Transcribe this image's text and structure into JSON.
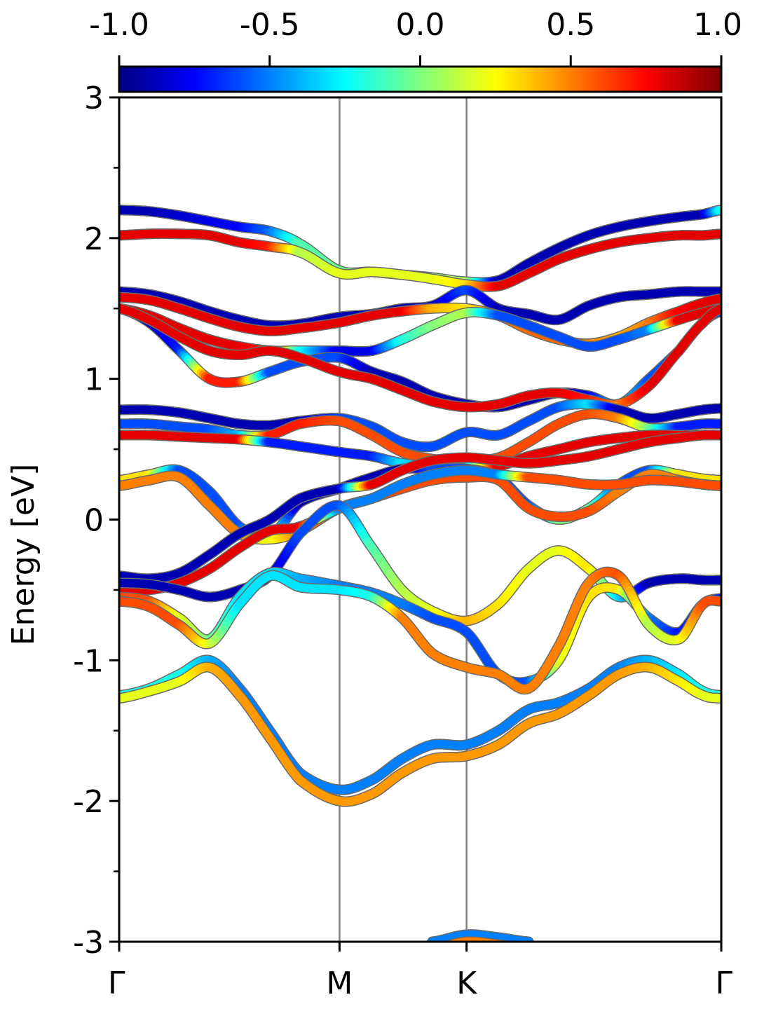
{
  "chart_data": {
    "type": "line",
    "subtype": "band-structure (fat bands colored by projection)",
    "title": "",
    "xlabel": "",
    "ylabel": "Energy [eV]",
    "ylim": [
      -3,
      3
    ],
    "y_major_ticks": [
      -3,
      -2,
      -1,
      0,
      1,
      2,
      3
    ],
    "y_major_tick_labels": [
      "-3",
      "-2",
      "-1",
      "0",
      "1",
      "2",
      "3"
    ],
    "y_minor_ticks": [
      -2.5,
      -1.5,
      -0.5,
      0.5,
      1.5,
      2.5
    ],
    "k_path": {
      "labels": [
        "Γ",
        "M",
        "K",
        "Γ"
      ],
      "positions": [
        0,
        0.366,
        0.577,
        1
      ],
      "vertical_lines_at": [
        "M",
        "K"
      ]
    },
    "colorbar": {
      "colormap": "jet",
      "range": [
        -1.0,
        1.0
      ],
      "ticks": [
        -1.0,
        -0.5,
        0.0,
        0.5,
        1.0
      ],
      "tick_labels": [
        "-1.0",
        "-0.5",
        "0.0",
        "0.5",
        "1.0"
      ],
      "placement": "top",
      "orientation": "horizontal"
    },
    "x": [
      0,
      0.05,
      0.1,
      0.15,
      0.2,
      0.25,
      0.3,
      0.366,
      0.42,
      0.47,
      0.52,
      0.577,
      0.63,
      0.68,
      0.73,
      0.78,
      0.83,
      0.88,
      0.93,
      0.97,
      1.0
    ],
    "bands": [
      {
        "e": [
          2.2,
          2.19,
          2.16,
          2.12,
          2.08,
          2.05,
          1.96,
          1.77,
          1.76,
          1.74,
          1.72,
          1.69,
          1.7,
          1.82,
          1.93,
          2.02,
          2.08,
          2.12,
          2.15,
          2.17,
          2.2
        ],
        "w": [
          -0.9,
          -0.9,
          -0.85,
          -0.8,
          -0.75,
          -0.55,
          -0.1,
          -0.05,
          0.0,
          0.05,
          0.05,
          0.1,
          -0.9,
          -0.9,
          -0.9,
          -0.9,
          -0.9,
          -0.9,
          -0.9,
          -0.9,
          -0.2
        ]
      },
      {
        "e": [
          2.02,
          2.03,
          2.03,
          2.02,
          1.97,
          1.94,
          1.9,
          1.75,
          1.76,
          1.74,
          1.71,
          1.67,
          1.66,
          1.75,
          1.85,
          1.92,
          1.97,
          2.0,
          2.02,
          2.02,
          2.03
        ],
        "w": [
          0.8,
          0.8,
          0.8,
          0.8,
          0.8,
          0.7,
          0.1,
          0.2,
          0.2,
          0.2,
          0.2,
          0.3,
          0.8,
          0.8,
          0.8,
          0.8,
          0.8,
          0.8,
          0.8,
          0.8,
          0.8
        ]
      },
      {
        "e": [
          1.62,
          1.6,
          1.55,
          1.48,
          1.42,
          1.38,
          1.39,
          1.44,
          1.46,
          1.5,
          1.52,
          1.63,
          1.5,
          1.46,
          1.42,
          1.52,
          1.58,
          1.6,
          1.62,
          1.62,
          1.62
        ],
        "w": [
          -0.9,
          -0.9,
          -0.9,
          -0.9,
          -0.9,
          -0.9,
          -0.9,
          -0.9,
          -0.9,
          -0.9,
          -0.9,
          -0.6,
          -0.9,
          -0.9,
          -0.9,
          -0.9,
          -0.9,
          -0.9,
          -0.9,
          -0.9,
          -0.9
        ]
      },
      {
        "e": [
          1.58,
          1.56,
          1.5,
          1.43,
          1.37,
          1.34,
          1.36,
          1.4,
          1.45,
          1.48,
          1.5,
          1.5,
          1.45,
          1.35,
          1.28,
          1.25,
          1.3,
          1.4,
          1.48,
          1.54,
          1.57
        ],
        "w": [
          0.8,
          0.8,
          0.8,
          0.8,
          0.8,
          0.8,
          0.8,
          0.8,
          0.8,
          0.8,
          0.4,
          0.3,
          0.5,
          0.55,
          0.55,
          0.5,
          0.4,
          0.5,
          0.75,
          0.8,
          0.8
        ]
      },
      {
        "e": [
          1.5,
          1.45,
          1.36,
          1.28,
          1.23,
          1.2,
          1.2,
          1.2,
          1.2,
          1.28,
          1.38,
          1.47,
          1.45,
          1.38,
          1.3,
          1.23,
          1.28,
          1.35,
          1.42,
          1.47,
          1.5
        ],
        "w": [
          0.8,
          0.8,
          0.8,
          0.8,
          0.8,
          0.7,
          -0.2,
          -0.8,
          -0.8,
          -0.2,
          0.0,
          0.1,
          -0.6,
          -0.6,
          -0.6,
          -0.6,
          -0.6,
          -0.5,
          0.8,
          0.8,
          0.8
        ]
      },
      {
        "e": [
          1.5,
          1.4,
          1.2,
          1.0,
          0.98,
          1.05,
          1.12,
          1.15,
          1.05,
          0.98,
          0.88,
          0.82,
          0.8,
          0.85,
          0.9,
          0.88,
          0.82,
          1.0,
          1.2,
          1.4,
          1.48
        ],
        "w": [
          -0.9,
          -0.9,
          -0.7,
          0.7,
          0.7,
          -0.6,
          -0.6,
          -0.6,
          -0.9,
          -0.9,
          -0.9,
          -0.9,
          -0.9,
          -0.9,
          -0.9,
          -0.8,
          -0.3,
          -0.6,
          -0.6,
          -0.6,
          -0.6
        ]
      },
      {
        "e": [
          1.5,
          1.42,
          1.3,
          1.2,
          1.17,
          1.2,
          1.15,
          1.05,
          1.0,
          0.92,
          0.84,
          0.8,
          0.82,
          0.88,
          0.9,
          0.85,
          0.82,
          0.95,
          1.2,
          1.4,
          1.5
        ],
        "w": [
          0.8,
          0.8,
          0.8,
          0.8,
          0.8,
          0.8,
          0.8,
          0.8,
          0.8,
          0.8,
          0.8,
          0.8,
          0.8,
          0.8,
          0.8,
          0.7,
          0.5,
          0.8,
          0.8,
          0.8,
          0.8
        ]
      },
      {
        "e": [
          0.78,
          0.78,
          0.76,
          0.72,
          0.68,
          0.67,
          0.7,
          0.72,
          0.66,
          0.55,
          0.52,
          0.62,
          0.6,
          0.7,
          0.8,
          0.82,
          0.78,
          0.72,
          0.75,
          0.78,
          0.79
        ],
        "w": [
          -0.9,
          -0.9,
          -0.9,
          -0.9,
          -0.9,
          -0.9,
          -0.9,
          -0.6,
          -0.6,
          -0.6,
          -0.6,
          -0.6,
          -0.6,
          -0.6,
          -0.6,
          -0.3,
          -0.9,
          -0.9,
          -0.9,
          -0.9,
          -0.9
        ]
      },
      {
        "e": [
          0.68,
          0.68,
          0.66,
          0.64,
          0.6,
          0.6,
          0.68,
          0.7,
          0.6,
          0.48,
          0.43,
          0.42,
          0.44,
          0.55,
          0.68,
          0.75,
          0.72,
          0.65,
          0.66,
          0.68,
          0.68
        ],
        "w": [
          -0.6,
          -0.6,
          -0.6,
          -0.6,
          -0.4,
          0.7,
          0.7,
          0.6,
          0.6,
          0.6,
          0.6,
          0.6,
          0.6,
          0.6,
          0.6,
          0.6,
          0.5,
          0.0,
          -0.7,
          -0.7,
          -0.7
        ]
      },
      {
        "e": [
          0.6,
          0.6,
          0.59,
          0.58,
          0.57,
          0.55,
          0.52,
          0.48,
          0.45,
          0.4,
          0.38,
          0.38,
          0.38,
          0.45,
          0.5,
          0.55,
          0.58,
          0.6,
          0.6,
          0.6,
          0.6
        ],
        "w": [
          0.8,
          0.8,
          0.8,
          0.8,
          0.8,
          -0.7,
          -0.7,
          -0.7,
          -0.7,
          -0.3,
          -0.4,
          -0.4,
          0.8,
          0.8,
          0.8,
          0.8,
          0.8,
          0.8,
          0.8,
          0.8,
          0.8
        ]
      },
      {
        "e": [
          0.28,
          0.32,
          0.35,
          0.2,
          -0.05,
          -0.12,
          0.12,
          0.22,
          0.3,
          0.36,
          0.36,
          0.36,
          0.3,
          0.1,
          0.0,
          0.08,
          0.25,
          0.35,
          0.32,
          0.29,
          0.28
        ],
        "w": [
          0.3,
          0.3,
          -0.6,
          -0.6,
          -0.6,
          0.0,
          -0.9,
          -0.9,
          -0.9,
          -0.9,
          -0.6,
          -0.6,
          -0.6,
          -0.6,
          0.0,
          0.0,
          -0.6,
          -0.6,
          0.3,
          0.3,
          0.3
        ]
      },
      {
        "e": [
          0.24,
          0.28,
          0.3,
          0.1,
          -0.1,
          -0.14,
          -0.08,
          0.08,
          0.15,
          0.22,
          0.28,
          0.3,
          0.28,
          0.08,
          0.02,
          0.06,
          0.2,
          0.32,
          0.28,
          0.25,
          0.24
        ],
        "w": [
          0.5,
          0.5,
          0.5,
          0.5,
          0.5,
          0.2,
          0.5,
          0.6,
          0.6,
          0.6,
          0.6,
          0.6,
          0.6,
          0.6,
          0.6,
          0.6,
          0.5,
          0.5,
          0.5,
          0.5,
          0.5
        ]
      },
      {
        "e": [
          -0.4,
          -0.42,
          -0.38,
          -0.25,
          -0.1,
          0.0,
          0.15,
          0.22,
          0.25,
          0.35,
          0.42,
          0.44,
          0.42,
          0.4,
          0.42,
          0.45,
          0.5,
          0.55,
          0.58,
          0.6,
          0.6
        ],
        "w": [
          -0.9,
          -0.9,
          -0.9,
          -0.9,
          -0.9,
          -0.9,
          -0.9,
          -0.9,
          0.8,
          0.8,
          0.8,
          0.8,
          0.8,
          0.8,
          0.8,
          0.8,
          0.8,
          0.8,
          0.8,
          0.8,
          0.8
        ]
      },
      {
        "e": [
          -0.5,
          -0.5,
          -0.45,
          -0.35,
          -0.2,
          -0.08,
          -0.05,
          0.08,
          0.15,
          0.25,
          0.32,
          0.35,
          0.32,
          0.3,
          0.28,
          0.25,
          0.25,
          0.28,
          0.27,
          0.25,
          0.24
        ],
        "w": [
          0.8,
          0.8,
          0.8,
          0.8,
          0.8,
          0.8,
          0.8,
          -0.5,
          -0.5,
          -0.5,
          -0.5,
          -0.5,
          -0.5,
          0.6,
          0.6,
          0.6,
          0.6,
          0.6,
          0.6,
          0.6,
          0.6
        ]
      },
      {
        "e": [
          -0.45,
          -0.46,
          -0.5,
          -0.55,
          -0.5,
          -0.4,
          -0.1,
          0.1,
          -0.2,
          -0.5,
          -0.65,
          -0.72,
          -0.6,
          -0.35,
          -0.22,
          -0.35,
          -0.55,
          -0.45,
          -0.42,
          -0.43,
          -0.43
        ],
        "w": [
          -0.9,
          -0.9,
          -0.9,
          -0.9,
          -0.9,
          -0.9,
          -0.6,
          -0.6,
          -0.1,
          0.1,
          0.2,
          0.4,
          0.3,
          0.2,
          0.2,
          0.3,
          -0.3,
          -0.9,
          -0.9,
          -0.9,
          -0.9
        ]
      },
      {
        "e": [
          -0.55,
          -0.58,
          -0.7,
          -0.85,
          -0.55,
          -0.38,
          -0.42,
          -0.47,
          -0.52,
          -0.6,
          -0.7,
          -0.8,
          -1.1,
          -1.15,
          -1.0,
          -0.55,
          -0.5,
          -0.7,
          -0.8,
          -0.6,
          -0.56
        ],
        "w": [
          0.6,
          0.6,
          0.2,
          0.0,
          -0.3,
          -0.3,
          -0.4,
          -0.5,
          -0.5,
          -0.5,
          -0.6,
          -0.6,
          -0.6,
          -0.6,
          0.2,
          0.3,
          0.3,
          -0.5,
          -0.7,
          -0.7,
          -0.7
        ]
      },
      {
        "e": [
          -0.58,
          -0.62,
          -0.75,
          -0.88,
          -0.6,
          -0.4,
          -0.48,
          -0.5,
          -0.55,
          -0.7,
          -0.95,
          -1.05,
          -1.1,
          -1.2,
          -0.9,
          -0.45,
          -0.4,
          -0.75,
          -0.85,
          -0.6,
          -0.58
        ],
        "w": [
          0.6,
          0.6,
          0.6,
          0.2,
          -0.3,
          -0.3,
          -0.3,
          -0.3,
          -0.2,
          0.5,
          0.5,
          0.5,
          0.5,
          0.5,
          0.5,
          0.5,
          0.6,
          0.1,
          0.2,
          0.6,
          0.6
        ]
      },
      {
        "e": [
          -1.25,
          -1.2,
          -1.1,
          -1.0,
          -1.2,
          -1.5,
          -1.8,
          -1.92,
          -1.85,
          -1.7,
          -1.6,
          -1.6,
          -1.5,
          -1.35,
          -1.3,
          -1.2,
          -1.05,
          -1.0,
          -1.1,
          -1.22,
          -1.25
        ],
        "w": [
          -0.2,
          -0.2,
          -0.2,
          -0.4,
          -0.5,
          -0.5,
          -0.5,
          -0.5,
          -0.5,
          -0.5,
          -0.5,
          -0.5,
          -0.5,
          -0.5,
          -0.5,
          -0.5,
          -0.5,
          -0.4,
          -0.3,
          -0.2,
          -0.2
        ]
      },
      {
        "e": [
          -1.27,
          -1.22,
          -1.15,
          -1.05,
          -1.25,
          -1.55,
          -1.85,
          -2.0,
          -1.95,
          -1.8,
          -1.7,
          -1.68,
          -1.6,
          -1.45,
          -1.38,
          -1.25,
          -1.1,
          -1.05,
          -1.15,
          -1.25,
          -1.27
        ],
        "w": [
          0.2,
          0.2,
          0.2,
          0.4,
          0.45,
          0.45,
          0.45,
          0.45,
          0.45,
          0.45,
          0.45,
          0.45,
          0.45,
          0.45,
          0.45,
          0.45,
          0.45,
          0.4,
          0.3,
          0.2,
          0.2
        ]
      },
      {
        "e": [
          null,
          null,
          null,
          null,
          null,
          null,
          null,
          null,
          null,
          null,
          -3.0,
          -2.95,
          -2.97,
          -3.0,
          null,
          null,
          null,
          null,
          null,
          null,
          null
        ],
        "w": [
          0,
          0,
          0,
          0,
          0,
          0,
          0,
          0,
          0,
          0,
          -0.5,
          -0.5,
          -0.5,
          -0.5,
          0,
          0,
          0,
          0,
          0,
          0,
          0
        ]
      },
      {
        "e": [
          null,
          null,
          null,
          null,
          null,
          null,
          null,
          null,
          null,
          null,
          -3.05,
          -3.0,
          -3.02,
          -3.05,
          null,
          null,
          null,
          null,
          null,
          null,
          null
        ],
        "w": [
          0,
          0,
          0,
          0,
          0,
          0,
          0,
          0,
          0,
          0,
          0.5,
          0.5,
          0.5,
          0.5,
          0,
          0,
          0,
          0,
          0,
          0,
          0
        ]
      }
    ]
  }
}
